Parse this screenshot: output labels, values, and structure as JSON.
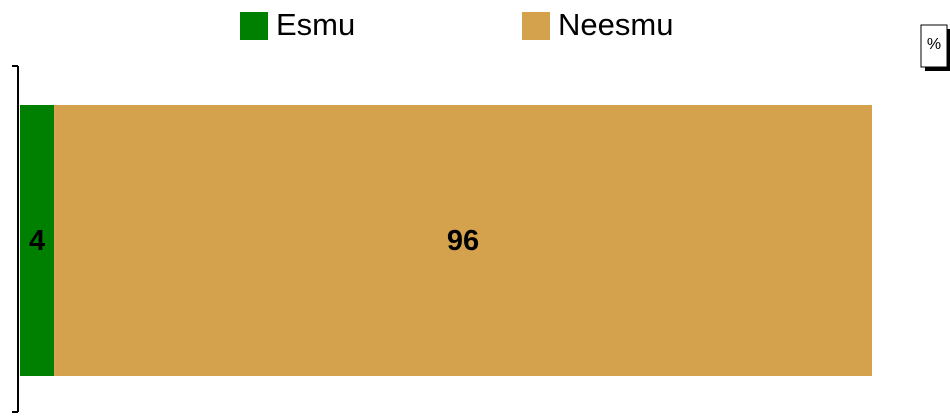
{
  "chart_data": {
    "type": "bar",
    "orientation": "horizontal",
    "stacked": true,
    "categories": [
      null
    ],
    "series": [
      {
        "name": "Esmu",
        "color": "#008000",
        "values": [
          4
        ]
      },
      {
        "name": "Neesmu",
        "color": "#d4a24c",
        "values": [
          96
        ]
      }
    ],
    "xlim": [
      0,
      100
    ],
    "unit": "%",
    "legend": "top"
  }
}
